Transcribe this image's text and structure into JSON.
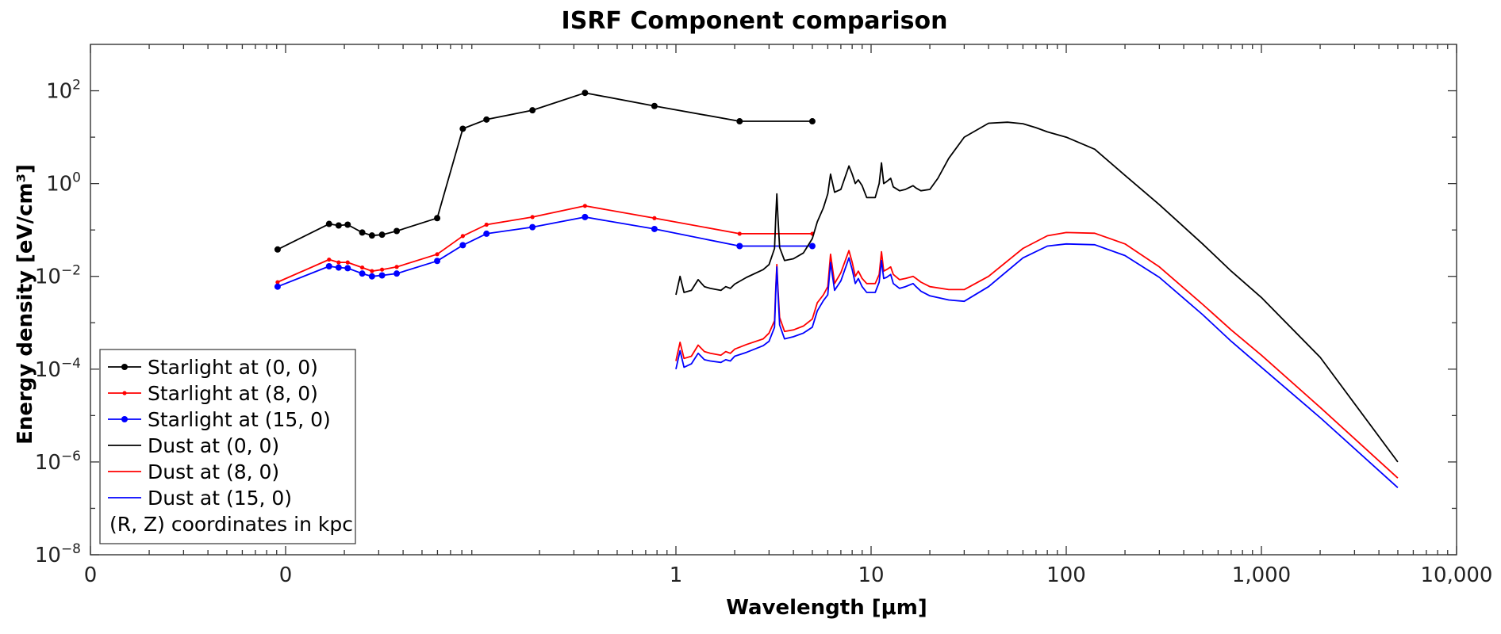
{
  "chart_data": {
    "type": "line",
    "title": "ISRF Component comparison",
    "xlabel": "Wavelength [μm]",
    "ylabel": "Energy density [eV/cm³]",
    "xscale": "log",
    "yscale": "log",
    "xlim": [
      0.001,
      10000
    ],
    "ylim": [
      1e-08,
      1000
    ],
    "x_tick_values": [
      0.001,
      0.01,
      1,
      10,
      100,
      1000,
      10000
    ],
    "x_tick_labels": [
      "0",
      "0",
      "1",
      "10",
      "100",
      "1,000",
      "10,000"
    ],
    "y_tick_values": [
      1e-08,
      1e-06,
      0.0001,
      0.01,
      1,
      100
    ],
    "y_tick_labels": [
      {
        "base": "10",
        "exp": "−8"
      },
      {
        "base": "10",
        "exp": "−6"
      },
      {
        "base": "10",
        "exp": "−4"
      },
      {
        "base": "10",
        "exp": "−2"
      },
      {
        "base": "10",
        "exp": "0"
      },
      {
        "base": "10",
        "exp": "2"
      }
    ],
    "grid": false,
    "legend_position": "bottom-left",
    "legend_note": "(R, Z) coordinates in kpc",
    "series": [
      {
        "name": "Starlight at (0, 0)",
        "color": "#000000",
        "marker": "circle",
        "kind": "starlight",
        "x": [
          0.0091,
          0.0167,
          0.0187,
          0.0208,
          0.0247,
          0.0277,
          0.0312,
          0.0371,
          0.0598,
          0.0809,
          0.107,
          0.184,
          0.342,
          0.776,
          2.12,
          5.0
        ],
        "y": [
          0.038,
          0.135,
          0.125,
          0.13,
          0.088,
          0.076,
          0.079,
          0.095,
          0.18,
          15.2,
          24,
          38,
          90,
          47,
          22,
          22
        ]
      },
      {
        "name": "Starlight at (8, 0)",
        "color": "#ff0000",
        "marker": "point",
        "kind": "starlight",
        "x": [
          0.0091,
          0.0167,
          0.0187,
          0.0208,
          0.0247,
          0.0277,
          0.0312,
          0.0371,
          0.0598,
          0.0809,
          0.107,
          0.184,
          0.342,
          0.776,
          2.12,
          5.0
        ],
        "y": [
          0.0075,
          0.023,
          0.02,
          0.02,
          0.0155,
          0.013,
          0.014,
          0.016,
          0.03,
          0.074,
          0.13,
          0.19,
          0.33,
          0.18,
          0.083,
          0.083
        ]
      },
      {
        "name": "Starlight at (15, 0)",
        "color": "#0000ff",
        "marker": "circle",
        "kind": "starlight",
        "x": [
          0.0091,
          0.0167,
          0.0187,
          0.0208,
          0.0247,
          0.0277,
          0.0312,
          0.0371,
          0.0598,
          0.0809,
          0.107,
          0.184,
          0.342,
          0.776,
          2.12,
          5.0
        ],
        "y": [
          0.006,
          0.0165,
          0.0155,
          0.015,
          0.0115,
          0.01,
          0.0105,
          0.0115,
          0.0215,
          0.047,
          0.083,
          0.115,
          0.19,
          0.105,
          0.045,
          0.045
        ]
      },
      {
        "name": "Dust at (0, 0)",
        "color": "#000000",
        "marker": "none",
        "kind": "dust",
        "x": [
          1.0,
          1.05,
          1.1,
          1.2,
          1.3,
          1.4,
          1.5,
          1.7,
          1.8,
          1.9,
          2.0,
          2.3,
          2.8,
          3.0,
          3.2,
          3.25,
          3.29,
          3.33,
          3.4,
          3.6,
          4.0,
          4.5,
          5.0,
          5.3,
          5.7,
          6.0,
          6.2,
          6.5,
          7.0,
          7.7,
          8.0,
          8.3,
          8.6,
          9.0,
          9.5,
          10.5,
          11.0,
          11.3,
          11.6,
          12.0,
          12.6,
          13.0,
          14.0,
          15.0,
          16.4,
          17.0,
          18.0,
          20.0,
          22.0,
          25.0,
          30.0,
          40.0,
          50.0,
          60.0,
          70.0,
          80.0,
          100.0,
          140.0,
          200.0,
          300.0,
          500.0,
          700.0,
          1000.0,
          2000.0,
          5000.0
        ],
        "y": [
          0.004,
          0.01,
          0.0045,
          0.005,
          0.0085,
          0.006,
          0.0055,
          0.005,
          0.006,
          0.0055,
          0.0068,
          0.0095,
          0.014,
          0.018,
          0.04,
          0.2,
          0.6,
          0.2,
          0.042,
          0.022,
          0.024,
          0.032,
          0.065,
          0.15,
          0.3,
          0.6,
          1.6,
          0.65,
          0.75,
          2.4,
          1.6,
          1.0,
          1.2,
          0.9,
          0.5,
          0.5,
          1.0,
          2.8,
          1.0,
          1.1,
          1.3,
          0.85,
          0.7,
          0.75,
          0.9,
          0.8,
          0.7,
          0.75,
          1.3,
          3.5,
          10.0,
          20.0,
          21.0,
          19.5,
          16.0,
          13.0,
          10.0,
          5.5,
          1.5,
          0.35,
          0.05,
          0.013,
          0.0035,
          0.00018,
          1e-06
        ]
      },
      {
        "name": "Dust at (8, 0)",
        "color": "#ff0000",
        "marker": "none",
        "kind": "dust",
        "x": [
          1.0,
          1.05,
          1.1,
          1.2,
          1.3,
          1.4,
          1.5,
          1.7,
          1.8,
          1.9,
          2.0,
          2.3,
          2.8,
          3.0,
          3.2,
          3.25,
          3.29,
          3.33,
          3.4,
          3.6,
          4.0,
          4.5,
          5.0,
          5.3,
          5.7,
          6.0,
          6.2,
          6.5,
          7.0,
          7.7,
          8.0,
          8.3,
          8.6,
          9.0,
          9.5,
          10.5,
          11.0,
          11.3,
          11.6,
          12.0,
          12.6,
          13.0,
          14.0,
          15.0,
          16.4,
          17.0,
          18.0,
          20.0,
          25.0,
          30.0,
          40.0,
          60.0,
          80.0,
          100.0,
          140.0,
          200.0,
          300.0,
          500.0,
          700.0,
          1000.0,
          2000.0,
          5000.0
        ],
        "y": [
          0.00015,
          0.00038,
          0.00017,
          0.00019,
          0.00033,
          0.00024,
          0.00022,
          0.0002,
          0.00024,
          0.00022,
          0.00027,
          0.00034,
          0.00045,
          0.0006,
          0.0011,
          0.006,
          0.018,
          0.006,
          0.0013,
          0.00065,
          0.0007,
          0.00085,
          0.0012,
          0.0027,
          0.004,
          0.006,
          0.03,
          0.007,
          0.012,
          0.036,
          0.02,
          0.01,
          0.013,
          0.009,
          0.007,
          0.007,
          0.011,
          0.034,
          0.013,
          0.014,
          0.016,
          0.011,
          0.0085,
          0.009,
          0.01,
          0.009,
          0.0075,
          0.006,
          0.0052,
          0.0052,
          0.01,
          0.04,
          0.075,
          0.088,
          0.085,
          0.05,
          0.016,
          0.0025,
          0.0007,
          0.0002,
          1.5e-05,
          4.5e-07
        ]
      },
      {
        "name": "Dust at (15, 0)",
        "color": "#0000ff",
        "marker": "none",
        "kind": "dust",
        "x": [
          1.0,
          1.05,
          1.1,
          1.2,
          1.3,
          1.4,
          1.5,
          1.7,
          1.8,
          1.9,
          2.0,
          2.3,
          2.8,
          3.0,
          3.2,
          3.25,
          3.29,
          3.33,
          3.4,
          3.6,
          4.0,
          4.5,
          5.0,
          5.3,
          5.7,
          6.0,
          6.2,
          6.5,
          7.0,
          7.7,
          8.0,
          8.3,
          8.6,
          9.0,
          9.5,
          10.5,
          11.0,
          11.3,
          11.6,
          12.0,
          12.6,
          13.0,
          14.0,
          15.0,
          16.4,
          17.0,
          18.0,
          20.0,
          25.0,
          30.0,
          40.0,
          60.0,
          80.0,
          100.0,
          140.0,
          200.0,
          300.0,
          500.0,
          700.0,
          1000.0,
          2000.0,
          5000.0
        ],
        "y": [
          0.0001,
          0.00025,
          0.00011,
          0.00013,
          0.00022,
          0.00016,
          0.00015,
          0.00014,
          0.00016,
          0.00015,
          0.00019,
          0.00023,
          0.00032,
          0.0004,
          0.0008,
          0.005,
          0.016,
          0.005,
          0.0009,
          0.00045,
          0.0005,
          0.0006,
          0.0008,
          0.0018,
          0.003,
          0.004,
          0.02,
          0.005,
          0.008,
          0.025,
          0.014,
          0.007,
          0.009,
          0.006,
          0.0045,
          0.0045,
          0.0075,
          0.022,
          0.009,
          0.0095,
          0.011,
          0.007,
          0.0055,
          0.006,
          0.007,
          0.006,
          0.0048,
          0.0038,
          0.0031,
          0.0029,
          0.006,
          0.025,
          0.045,
          0.05,
          0.048,
          0.028,
          0.0095,
          0.0015,
          0.0004,
          0.00011,
          9e-06,
          2.8e-07
        ]
      }
    ]
  }
}
